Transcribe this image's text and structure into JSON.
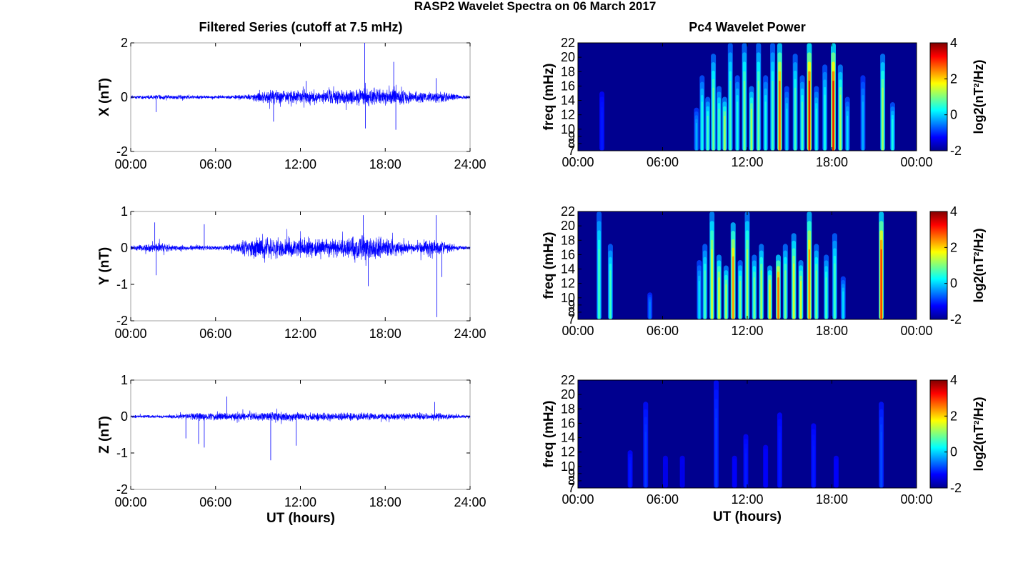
{
  "figure": {
    "title": "RASP2 Wavelet Spectra on 06 March 2017",
    "left_column_title": "Filtered Series (cutoff at 7.5 mHz)",
    "right_column_title": "Pc4 Wavelet Power",
    "xlabel": "UT (hours)"
  },
  "colors": {
    "trace": "#0000ff",
    "axes": "#000000",
    "frame": "#a0a0a0",
    "background": "#00008f"
  },
  "chart_data": [
    {
      "type": "line",
      "component": "X",
      "ylabel": "X (nT)",
      "xlim": [
        0,
        24
      ],
      "ylim": [
        -2,
        2
      ],
      "xticks": [
        "00:00",
        "06:00",
        "12:00",
        "18:00",
        "24:00"
      ],
      "yticks": [
        "-2",
        "0",
        "2"
      ],
      "envelope": {
        "x": [
          0,
          1,
          2,
          3,
          4,
          5,
          6,
          7,
          8,
          9,
          10,
          11,
          12,
          13,
          14,
          15,
          16,
          17,
          18,
          19,
          20,
          21,
          22,
          23,
          24
        ],
        "amplitude": [
          0.06,
          0.08,
          0.1,
          0.09,
          0.08,
          0.08,
          0.07,
          0.08,
          0.1,
          0.2,
          0.3,
          0.28,
          0.32,
          0.3,
          0.33,
          0.3,
          0.34,
          0.38,
          0.32,
          0.3,
          0.24,
          0.22,
          0.25,
          0.12,
          0.06
        ]
      },
      "spikes": [
        {
          "x": 1.8,
          "y": -0.55
        },
        {
          "x": 10.1,
          "y": -0.9
        },
        {
          "x": 12.4,
          "y": 0.6
        },
        {
          "x": 16.55,
          "y": 2.0
        },
        {
          "x": 16.6,
          "y": -1.15
        },
        {
          "x": 18.6,
          "y": 1.3
        },
        {
          "x": 18.75,
          "y": -1.2
        },
        {
          "x": 21.6,
          "y": 0.7
        }
      ]
    },
    {
      "type": "line",
      "component": "Y",
      "ylabel": "Y (nT)",
      "xlim": [
        0,
        24
      ],
      "ylim": [
        -2,
        1
      ],
      "xticks": [
        "00:00",
        "06:00",
        "12:00",
        "18:00",
        "24:00"
      ],
      "yticks": [
        "-2",
        "-1",
        "0",
        "1"
      ],
      "envelope": {
        "x": [
          0,
          1,
          2,
          3,
          4,
          5,
          6,
          7,
          8,
          9,
          10,
          11,
          12,
          13,
          14,
          15,
          16,
          17,
          18,
          19,
          20,
          21,
          22,
          23,
          24
        ],
        "amplitude": [
          0.06,
          0.12,
          0.15,
          0.1,
          0.08,
          0.08,
          0.07,
          0.1,
          0.25,
          0.35,
          0.3,
          0.3,
          0.32,
          0.28,
          0.3,
          0.3,
          0.4,
          0.38,
          0.32,
          0.24,
          0.12,
          0.3,
          0.2,
          0.08,
          0.05
        ]
      },
      "spikes": [
        {
          "x": 1.7,
          "y": 0.7
        },
        {
          "x": 1.8,
          "y": -0.75
        },
        {
          "x": 5.2,
          "y": 0.65
        },
        {
          "x": 16.45,
          "y": 0.9
        },
        {
          "x": 16.8,
          "y": -1.05
        },
        {
          "x": 21.6,
          "y": 0.9
        },
        {
          "x": 21.65,
          "y": -1.9
        },
        {
          "x": 22.0,
          "y": -0.8
        }
      ]
    },
    {
      "type": "line",
      "component": "Z",
      "ylabel": "Z (nT)",
      "xlim": [
        0,
        24
      ],
      "ylim": [
        -2,
        1
      ],
      "xticks": [
        "00:00",
        "06:00",
        "12:00",
        "18:00",
        "24:00"
      ],
      "yticks": [
        "-2",
        "-1",
        "0",
        "1"
      ],
      "envelope": {
        "x": [
          0,
          1,
          2,
          3,
          4,
          5,
          6,
          7,
          8,
          9,
          10,
          11,
          12,
          13,
          14,
          15,
          16,
          17,
          18,
          19,
          20,
          21,
          22,
          23,
          24
        ],
        "amplitude": [
          0.04,
          0.05,
          0.05,
          0.06,
          0.1,
          0.12,
          0.12,
          0.12,
          0.12,
          0.12,
          0.14,
          0.14,
          0.12,
          0.12,
          0.12,
          0.12,
          0.12,
          0.12,
          0.1,
          0.1,
          0.1,
          0.12,
          0.12,
          0.06,
          0.04
        ]
      },
      "spikes": [
        {
          "x": 3.9,
          "y": -0.6
        },
        {
          "x": 4.8,
          "y": -0.75
        },
        {
          "x": 5.2,
          "y": -0.85
        },
        {
          "x": 6.8,
          "y": 0.55
        },
        {
          "x": 9.9,
          "y": -1.2
        },
        {
          "x": 11.7,
          "y": -0.8
        },
        {
          "x": 21.5,
          "y": 0.4
        }
      ]
    },
    {
      "type": "heatmap",
      "component": "X",
      "ylabel": "freq (mHz)",
      "xlim": [
        0,
        24
      ],
      "ylim": [
        7,
        22
      ],
      "xticks": [
        "00:00",
        "06:00",
        "12:00",
        "18:00",
        "00:00"
      ],
      "yticks": [
        "7",
        "8",
        "9",
        "10",
        "12",
        "14",
        "16",
        "18",
        "20",
        "22"
      ],
      "colorbar": {
        "label": "log2(nT²/Hz)",
        "range": [
          -2,
          4
        ],
        "ticks": [
          "-2",
          "0",
          "2",
          "4"
        ]
      },
      "bursts": [
        {
          "x": 1.7,
          "height": 0.55,
          "power": 0.15
        },
        {
          "x": 8.4,
          "height": 0.4,
          "power": 0.3
        },
        {
          "x": 8.8,
          "height": 0.7,
          "power": 0.4
        },
        {
          "x": 9.2,
          "height": 0.5,
          "power": 0.45
        },
        {
          "x": 9.6,
          "height": 0.9,
          "power": 0.5
        },
        {
          "x": 10.0,
          "height": 0.6,
          "power": 0.45
        },
        {
          "x": 10.4,
          "height": 0.5,
          "power": 0.55
        },
        {
          "x": 10.8,
          "height": 1.0,
          "power": 0.45
        },
        {
          "x": 11.3,
          "height": 0.7,
          "power": 0.4
        },
        {
          "x": 11.8,
          "height": 1.0,
          "power": 0.5
        },
        {
          "x": 12.3,
          "height": 0.6,
          "power": 0.55
        },
        {
          "x": 12.8,
          "height": 1.0,
          "power": 0.5
        },
        {
          "x": 13.3,
          "height": 0.7,
          "power": 0.4
        },
        {
          "x": 13.8,
          "height": 1.0,
          "power": 0.45
        },
        {
          "x": 14.3,
          "height": 1.0,
          "power": 0.8
        },
        {
          "x": 14.8,
          "height": 0.6,
          "power": 0.35
        },
        {
          "x": 15.4,
          "height": 0.9,
          "power": 0.45
        },
        {
          "x": 15.9,
          "height": 0.7,
          "power": 0.45
        },
        {
          "x": 16.4,
          "height": 1.0,
          "power": 0.9
        },
        {
          "x": 16.9,
          "height": 0.6,
          "power": 0.4
        },
        {
          "x": 17.5,
          "height": 0.8,
          "power": 0.4
        },
        {
          "x": 18.1,
          "height": 1.0,
          "power": 0.9
        },
        {
          "x": 18.6,
          "height": 0.8,
          "power": 0.55
        },
        {
          "x": 19.1,
          "height": 0.5,
          "power": 0.35
        },
        {
          "x": 20.2,
          "height": 0.7,
          "power": 0.3
        },
        {
          "x": 21.6,
          "height": 0.9,
          "power": 0.55
        },
        {
          "x": 22.3,
          "height": 0.45,
          "power": 0.4
        }
      ]
    },
    {
      "type": "heatmap",
      "component": "Y",
      "ylabel": "freq (mHz)",
      "xlim": [
        0,
        24
      ],
      "ylim": [
        7,
        22
      ],
      "xticks": [
        "00:00",
        "06:00",
        "12:00",
        "18:00",
        "00:00"
      ],
      "yticks": [
        "7",
        "8",
        "9",
        "10",
        "12",
        "14",
        "16",
        "18",
        "20",
        "22"
      ],
      "colorbar": {
        "label": "log2(nT²/Hz)",
        "range": [
          -2,
          4
        ],
        "ticks": [
          "-2",
          "0",
          "2",
          "4"
        ]
      },
      "bursts": [
        {
          "x": 1.5,
          "height": 1.0,
          "power": 0.45
        },
        {
          "x": 2.3,
          "height": 0.7,
          "power": 0.45
        },
        {
          "x": 5.1,
          "height": 0.25,
          "power": 0.25
        },
        {
          "x": 8.6,
          "height": 0.55,
          "power": 0.35
        },
        {
          "x": 9.0,
          "height": 0.7,
          "power": 0.45
        },
        {
          "x": 9.5,
          "height": 1.0,
          "power": 0.6
        },
        {
          "x": 10.0,
          "height": 0.6,
          "power": 0.6
        },
        {
          "x": 10.5,
          "height": 0.5,
          "power": 0.55
        },
        {
          "x": 11.0,
          "height": 0.9,
          "power": 0.75
        },
        {
          "x": 11.5,
          "height": 0.55,
          "power": 0.5
        },
        {
          "x": 12.0,
          "height": 1.0,
          "power": 0.55
        },
        {
          "x": 12.5,
          "height": 0.6,
          "power": 0.5
        },
        {
          "x": 13.0,
          "height": 0.7,
          "power": 0.55
        },
        {
          "x": 13.6,
          "height": 0.5,
          "power": 0.65
        },
        {
          "x": 14.2,
          "height": 0.6,
          "power": 0.8
        },
        {
          "x": 14.7,
          "height": 0.7,
          "power": 0.5
        },
        {
          "x": 15.3,
          "height": 0.8,
          "power": 0.6
        },
        {
          "x": 15.8,
          "height": 0.55,
          "power": 0.6
        },
        {
          "x": 16.4,
          "height": 1.0,
          "power": 0.75
        },
        {
          "x": 16.9,
          "height": 0.7,
          "power": 0.5
        },
        {
          "x": 17.6,
          "height": 0.6,
          "power": 0.45
        },
        {
          "x": 18.2,
          "height": 0.8,
          "power": 0.45
        },
        {
          "x": 18.8,
          "height": 0.4,
          "power": 0.35
        },
        {
          "x": 21.5,
          "height": 1.0,
          "power": 0.85
        }
      ]
    },
    {
      "type": "heatmap",
      "component": "Z",
      "ylabel": "freq (mHz)",
      "xlim": [
        0,
        24
      ],
      "ylim": [
        7,
        22
      ],
      "xticks": [
        "00:00",
        "06:00",
        "12:00",
        "18:00",
        "00:00"
      ],
      "yticks": [
        "7",
        "8",
        "9",
        "10",
        "12",
        "14",
        "16",
        "18",
        "20",
        "22"
      ],
      "colorbar": {
        "label": "log2(nT²/Hz)",
        "range": [
          -2,
          4
        ],
        "ticks": [
          "-2",
          "0",
          "2",
          "4"
        ]
      },
      "bursts": [
        {
          "x": 3.7,
          "height": 0.35,
          "power": 0.15
        },
        {
          "x": 4.8,
          "height": 0.8,
          "power": 0.18
        },
        {
          "x": 6.2,
          "height": 0.3,
          "power": 0.1
        },
        {
          "x": 7.4,
          "height": 0.3,
          "power": 0.1
        },
        {
          "x": 9.8,
          "height": 1.0,
          "power": 0.18
        },
        {
          "x": 11.1,
          "height": 0.3,
          "power": 0.12
        },
        {
          "x": 11.9,
          "height": 0.5,
          "power": 0.15
        },
        {
          "x": 13.3,
          "height": 0.4,
          "power": 0.12
        },
        {
          "x": 14.3,
          "height": 0.7,
          "power": 0.15
        },
        {
          "x": 16.7,
          "height": 0.6,
          "power": 0.15
        },
        {
          "x": 18.3,
          "height": 0.3,
          "power": 0.12
        },
        {
          "x": 21.5,
          "height": 0.8,
          "power": 0.2
        }
      ]
    }
  ]
}
